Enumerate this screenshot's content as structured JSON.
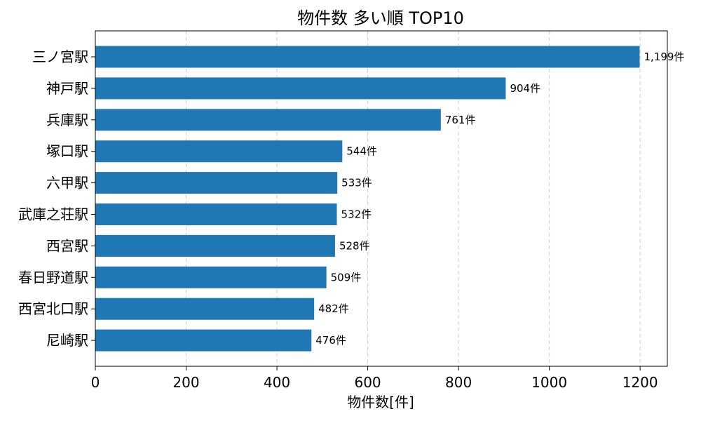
{
  "chart_data": {
    "type": "bar",
    "orientation": "horizontal",
    "title": "物件数 多い順 TOP10",
    "xlabel": "物件数[件]",
    "ylabel": "",
    "categories": [
      "三ノ宮駅",
      "神戸駅",
      "兵庫駅",
      "塚口駅",
      "六甲駅",
      "武庫之荘駅",
      "西宮駅",
      "春日野道駅",
      "西宮北口駅",
      "尼崎駅"
    ],
    "values": [
      1199,
      904,
      761,
      544,
      533,
      532,
      528,
      509,
      482,
      476
    ],
    "data_labels": [
      "1,199件",
      "904件",
      "761件",
      "544件",
      "533件",
      "532件",
      "528件",
      "509件",
      "482件",
      "476件"
    ],
    "xlim": [
      0,
      1260
    ],
    "xticks": [
      0,
      200,
      400,
      600,
      800,
      1000,
      1200
    ],
    "grid": "x-dashed",
    "bar_color": "#1f77b4"
  }
}
